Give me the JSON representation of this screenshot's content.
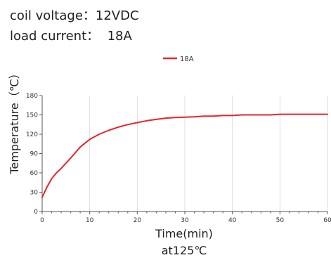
{
  "spec": {
    "coil_voltage": "coil voltage：12VDC",
    "load_current": "load current：  18A"
  },
  "colors": {
    "series": "#e8242b",
    "axis": "#555555",
    "grid": "#d6d6d6"
  },
  "chart_data": {
    "type": "line",
    "xlabel": "Time(min)",
    "ylabel": "Temperature（℃）",
    "caption": "at125℃",
    "xlim": [
      0,
      60
    ],
    "ylim": [
      0,
      180
    ],
    "xticks": [
      0,
      10,
      20,
      30,
      40,
      50,
      60
    ],
    "yticks": [
      0,
      30,
      60,
      90,
      120,
      150,
      180
    ],
    "grid": "vertical",
    "legend": "top-center",
    "series": [
      {
        "name": "18A",
        "color": "#e8242b",
        "x": [
          0,
          1,
          2,
          3,
          4,
          6,
          8,
          10,
          12,
          14,
          16,
          18,
          20,
          22,
          24,
          26,
          28,
          30,
          32,
          34,
          36,
          38,
          40,
          42,
          44,
          46,
          48,
          50,
          55,
          60
        ],
        "y": [
          22,
          38,
          51,
          60,
          67,
          83,
          100,
          112,
          120,
          126,
          131,
          135,
          138,
          141,
          143,
          145,
          146,
          146.5,
          147,
          148,
          148,
          149,
          149,
          150,
          150,
          150,
          150,
          151,
          151,
          151
        ]
      }
    ]
  }
}
